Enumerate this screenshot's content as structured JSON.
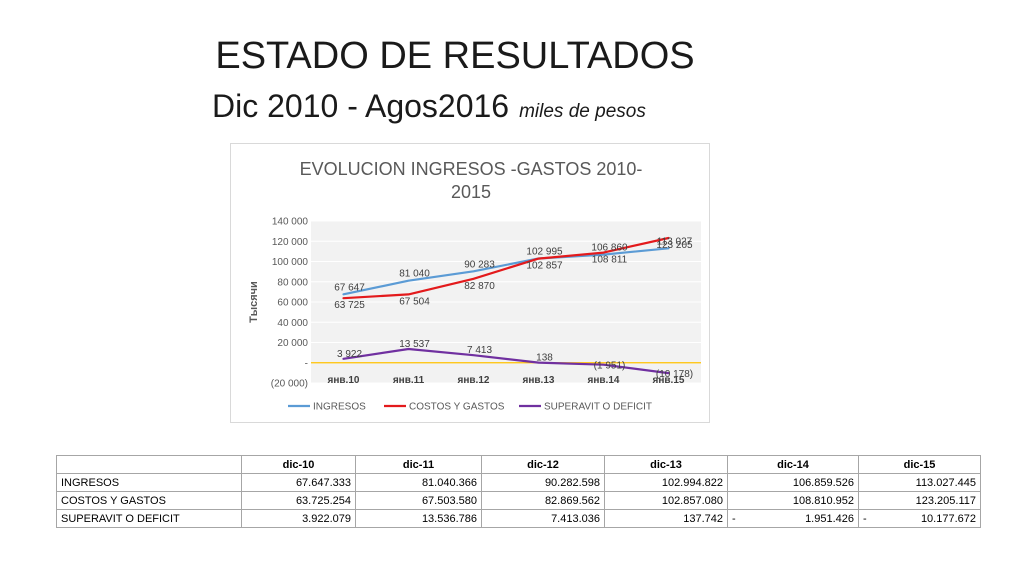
{
  "slide": {
    "title": "ESTADO DE RESULTADOS",
    "subtitle": "Dic 2010 - Agos2016",
    "subtitle_note": "miles de pesos"
  },
  "chart_data": {
    "type": "line",
    "title": "EVOLUCION INGRESOS -GASTOS 2010-2015",
    "title_lines": [
      "EVOLUCION INGRESOS -GASTOS 2010-",
      "2015"
    ],
    "xlabel": "",
    "ylabel": "Тысячи",
    "categories": [
      "янв.10",
      "янв.11",
      "янв.12",
      "янв.13",
      "янв.14",
      "янв.15"
    ],
    "ylim": [
      -20000,
      140000
    ],
    "y_ticks": [
      {
        "value": 140000,
        "label": "140 000"
      },
      {
        "value": 120000,
        "label": "120 000"
      },
      {
        "value": 100000,
        "label": "100 000"
      },
      {
        "value": 80000,
        "label": "80 000"
      },
      {
        "value": 60000,
        "label": "60 000"
      },
      {
        "value": 40000,
        "label": "40 000"
      },
      {
        "value": 20000,
        "label": "20 000"
      },
      {
        "value": 0,
        "label": "-"
      },
      {
        "value": -20000,
        "label": "(20 000)"
      }
    ],
    "grid": true,
    "legend_position": "bottom",
    "series": [
      {
        "name": "INGRESOS",
        "color": "#5b9bd5",
        "values": [
          67647,
          81040,
          90283,
          102995,
          106860,
          113027
        ],
        "labels": [
          "67 647",
          "81 040",
          "90 283",
          "102 995",
          "106 860",
          "113 027"
        ]
      },
      {
        "name": "COSTOS Y GASTOS",
        "color": "#e31a1c",
        "values": [
          63725,
          67504,
          82870,
          102857,
          108811,
          123205
        ],
        "labels": [
          "63 725",
          "67 504",
          "82 870",
          "102 857",
          "108 811",
          "123 205"
        ]
      },
      {
        "name": "SUPERAVIT O DEFICIT",
        "color": "#7030a0",
        "values": [
          3922,
          13537,
          7413,
          138,
          -1951,
          -10178
        ],
        "labels": [
          "3 922",
          "13 537",
          "7 413",
          "138",
          "(1 951)",
          "(10 178)"
        ]
      }
    ],
    "zero_line_color": "#ffc000"
  },
  "table": {
    "headers": [
      "",
      "dic-10",
      "dic-11",
      "dic-12",
      "dic-13",
      "dic-14",
      "dic-15"
    ],
    "rows": [
      {
        "label": "INGRESOS",
        "cells": [
          {
            "sign": "",
            "value": "67.647.333"
          },
          {
            "sign": "",
            "value": "81.040.366"
          },
          {
            "sign": "",
            "value": "90.282.598"
          },
          {
            "sign": "",
            "value": "102.994.822"
          },
          {
            "sign": "",
            "value": "106.859.526"
          },
          {
            "sign": "",
            "value": "113.027.445"
          }
        ]
      },
      {
        "label": "COSTOS Y GASTOS",
        "cells": [
          {
            "sign": "",
            "value": "63.725.254"
          },
          {
            "sign": "",
            "value": "67.503.580"
          },
          {
            "sign": "",
            "value": "82.869.562"
          },
          {
            "sign": "",
            "value": "102.857.080"
          },
          {
            "sign": "",
            "value": "108.810.952"
          },
          {
            "sign": "",
            "value": "123.205.117"
          }
        ]
      },
      {
        "label": "SUPERAVIT O DEFICIT",
        "cells": [
          {
            "sign": "",
            "value": "3.922.079"
          },
          {
            "sign": "",
            "value": "13.536.786"
          },
          {
            "sign": "",
            "value": "7.413.036"
          },
          {
            "sign": "",
            "value": "137.742"
          },
          {
            "sign": "-",
            "value": "1.951.426"
          },
          {
            "sign": "-",
            "value": "10.177.672"
          }
        ]
      }
    ]
  }
}
